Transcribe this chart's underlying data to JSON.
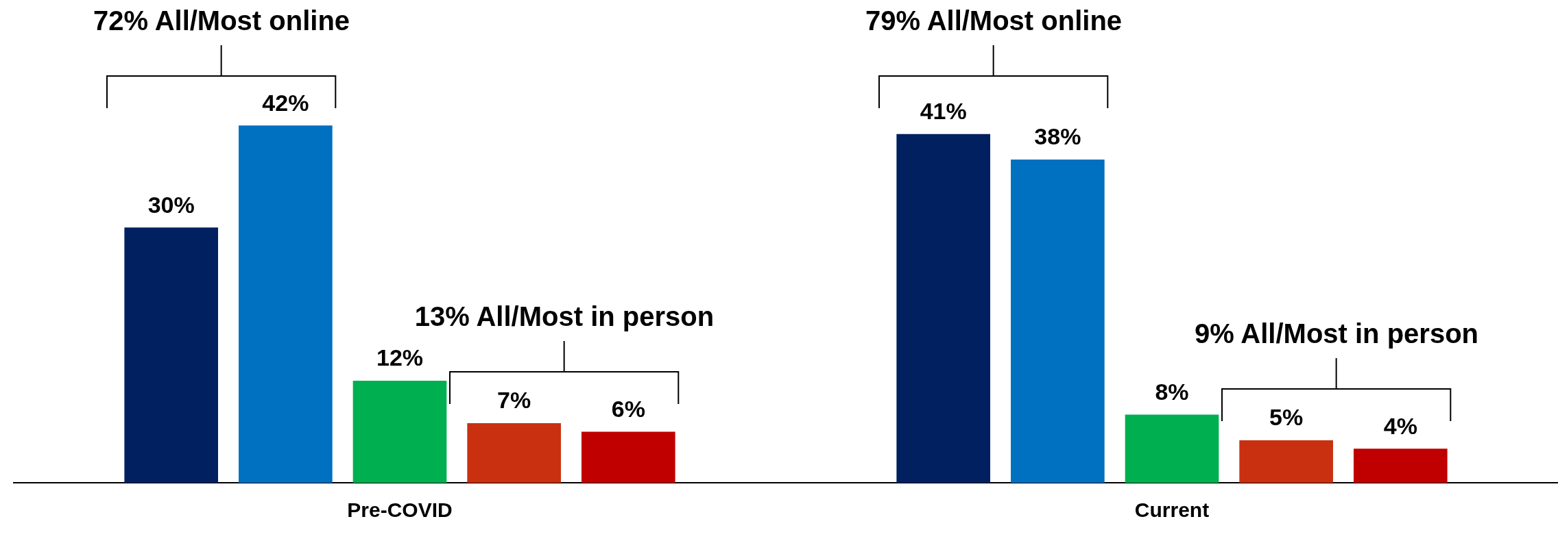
{
  "chart_data": {
    "type": "bar",
    "categories": [
      "Pre-COVID",
      "Current"
    ],
    "series": [
      {
        "color": "#002060",
        "values": [
          30,
          41
        ],
        "value_labels": [
          "30%",
          "41%"
        ]
      },
      {
        "color": "#0070c0",
        "values": [
          42,
          38
        ],
        "value_labels": [
          "42%",
          "38%"
        ]
      },
      {
        "color": "#00b050",
        "values": [
          12,
          8
        ],
        "value_labels": [
          "12%",
          "8%"
        ]
      },
      {
        "color": "#c9300f",
        "values": [
          7,
          5
        ],
        "value_labels": [
          "7%",
          "5%"
        ]
      },
      {
        "color": "#c00000",
        "values": [
          6,
          4
        ],
        "value_labels": [
          "6%",
          "4%"
        ]
      }
    ],
    "grid": false,
    "legend": false,
    "annotations": [
      "72% All/Most online",
      "13% All/Most in person",
      "79% All/Most online",
      "9% All/Most in person"
    ]
  }
}
